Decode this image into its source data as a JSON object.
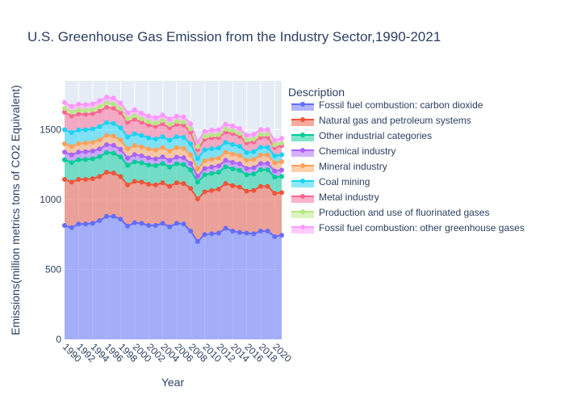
{
  "chart_data": {
    "type": "area",
    "title": "U.S. Greenhouse Gas Emission from the Industry Sector,1990-2021",
    "xlabel": "Year",
    "ylabel": "Emissions(million metrics tons of CO2 Equivalent)",
    "legend_title": "Description",
    "legend_position": "right",
    "grid": true,
    "xlim": [
      1990,
      2021
    ],
    "ylim": [
      0,
      1850
    ],
    "x_ticks": [
      1990,
      1992,
      1994,
      1996,
      1998,
      2000,
      2002,
      2004,
      2006,
      2008,
      2010,
      2012,
      2014,
      2016,
      2018,
      2020
    ],
    "y_ticks": [
      0,
      500,
      1000,
      1500
    ],
    "stacked": true,
    "x": [
      1990,
      1991,
      1992,
      1993,
      1994,
      1995,
      1996,
      1997,
      1998,
      1999,
      2000,
      2001,
      2002,
      2003,
      2004,
      2005,
      2006,
      2007,
      2008,
      2009,
      2010,
      2011,
      2012,
      2013,
      2014,
      2015,
      2016,
      2017,
      2018,
      2019,
      2020,
      2021
    ],
    "series": [
      {
        "name": "Fossil fuel combustion: carbon dioxide",
        "color": "#636efa",
        "values": [
          815,
          800,
          825,
          825,
          830,
          850,
          880,
          880,
          860,
          810,
          835,
          830,
          815,
          815,
          830,
          805,
          830,
          825,
          775,
          700,
          750,
          755,
          760,
          795,
          775,
          765,
          760,
          755,
          775,
          775,
          735,
          745
        ]
      },
      {
        "name": "Natural gas and petroleum systems",
        "color": "#ef553b",
        "values": [
          330,
          325,
          320,
          320,
          320,
          315,
          315,
          310,
          305,
          295,
          295,
          295,
          295,
          290,
          290,
          290,
          290,
          290,
          305,
          305,
          305,
          310,
          315,
          320,
          325,
          325,
          300,
          310,
          320,
          320,
          310,
          305
        ]
      },
      {
        "name": "Other industrial categories",
        "color": "#00cc96",
        "values": [
          140,
          140,
          140,
          142,
          142,
          142,
          142,
          142,
          140,
          140,
          140,
          138,
          138,
          138,
          138,
          138,
          136,
          136,
          132,
          120,
          122,
          122,
          120,
          120,
          120,
          120,
          118,
          118,
          118,
          118,
          116,
          116
        ]
      },
      {
        "name": "Chemical industry",
        "color": "#ab63fa",
        "values": [
          55,
          55,
          55,
          56,
          56,
          56,
          56,
          56,
          54,
          52,
          52,
          50,
          50,
          48,
          48,
          48,
          48,
          48,
          46,
          42,
          46,
          46,
          46,
          46,
          46,
          46,
          45,
          45,
          46,
          46,
          44,
          45
        ]
      },
      {
        "name": "Mineral industry",
        "color": "#ffa15a",
        "values": [
          60,
          60,
          60,
          62,
          62,
          64,
          66,
          66,
          66,
          66,
          66,
          64,
          64,
          64,
          66,
          66,
          68,
          68,
          62,
          52,
          55,
          56,
          56,
          58,
          60,
          60,
          58,
          60,
          60,
          60,
          58,
          60
        ]
      },
      {
        "name": "Coal mining",
        "color": "#19d3f3",
        "values": [
          100,
          100,
          98,
          95,
          95,
          95,
          92,
          90,
          88,
          85,
          82,
          82,
          80,
          78,
          78,
          78,
          78,
          78,
          78,
          75,
          78,
          75,
          72,
          70,
          68,
          65,
          55,
          55,
          55,
          55,
          50,
          50
        ]
      },
      {
        "name": "Metal industry",
        "color": "#ff6692",
        "values": [
          125,
          118,
          115,
          110,
          110,
          112,
          110,
          110,
          108,
          105,
          105,
          95,
          92,
          90,
          92,
          88,
          88,
          88,
          85,
          65,
          75,
          78,
          75,
          75,
          78,
          72,
          70,
          70,
          72,
          72,
          60,
          65
        ]
      },
      {
        "name": "Production and use of fluorinated gases",
        "color": "#b6e880",
        "values": [
          28,
          28,
          28,
          28,
          28,
          30,
          30,
          30,
          28,
          26,
          26,
          24,
          24,
          24,
          24,
          24,
          22,
          22,
          22,
          20,
          20,
          20,
          20,
          20,
          20,
          20,
          20,
          20,
          20,
          20,
          18,
          18
        ]
      },
      {
        "name": "Fossil fuel combustion: other greenhouse gases",
        "color": "#ff97ff",
        "values": [
          42,
          42,
          42,
          42,
          42,
          43,
          43,
          43,
          42,
          42,
          42,
          40,
          40,
          40,
          40,
          40,
          38,
          38,
          38,
          35,
          36,
          36,
          36,
          36,
          36,
          36,
          35,
          35,
          35,
          35,
          33,
          34
        ]
      }
    ]
  }
}
